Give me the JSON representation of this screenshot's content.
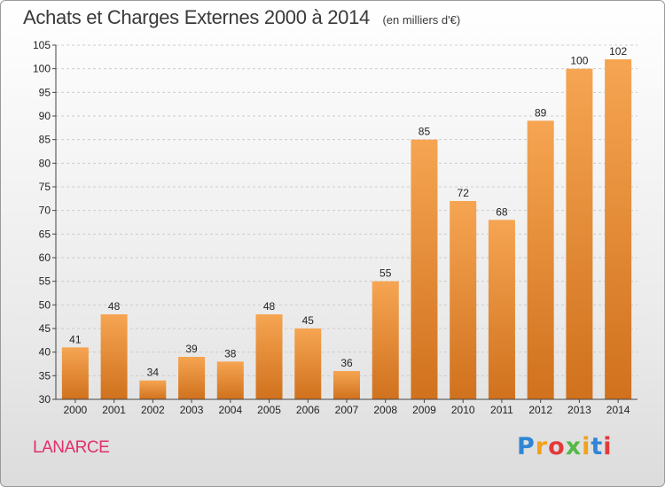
{
  "header": {
    "title": "Achats et Charges Externes 2000 à 2014",
    "subtitle": "(en milliers d'€)"
  },
  "footer": {
    "place": "LANARCE",
    "logo": "Proxiti"
  },
  "colors": {
    "bar_light": "#f6a552",
    "bar_dark": "#d0711d",
    "grid": "#cccccc",
    "axis": "#444444"
  },
  "chart_data": {
    "type": "bar",
    "categories": [
      "2000",
      "2001",
      "2002",
      "2003",
      "2004",
      "2005",
      "2006",
      "2007",
      "2008",
      "2009",
      "2010",
      "2011",
      "2012",
      "2013",
      "2014"
    ],
    "values": [
      41,
      48,
      34,
      39,
      38,
      48,
      45,
      36,
      55,
      85,
      72,
      68,
      89,
      100,
      102
    ],
    "title": "Achats et Charges Externes 2000 à 2014",
    "subtitle": "(en milliers d'€)",
    "xlabel": "",
    "ylabel": "",
    "ylim": [
      30,
      105
    ],
    "yticks": [
      30,
      35,
      40,
      45,
      50,
      55,
      60,
      65,
      70,
      75,
      80,
      85,
      90,
      95,
      100,
      105
    ],
    "grid": true,
    "legend": "none"
  }
}
